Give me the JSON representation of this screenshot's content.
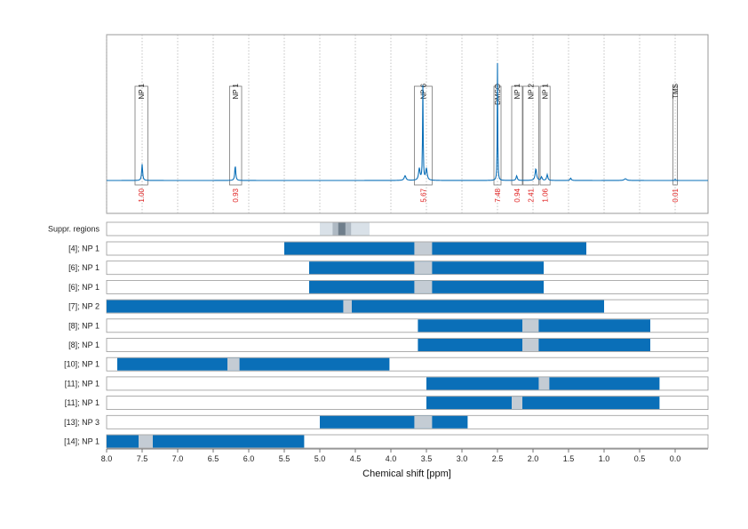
{
  "chart_data": {
    "type": "nmr-spectrum-with-range-bars",
    "xlabel": "Chemical shift [ppm]",
    "xlim": [
      8.0,
      -0.45
    ],
    "x_reversed": true,
    "xticks": [
      "8.0",
      "7.5",
      "7.0",
      "6.5",
      "6.0",
      "5.5",
      "5.0",
      "4.5",
      "4.0",
      "3.5",
      "3.0",
      "2.5",
      "2.0",
      "1.5",
      "1.0",
      "0.5",
      "0.0"
    ],
    "grid": "vertical dotted lines every 0.5 ppm in spectrum panel",
    "colors": {
      "bar": "#0a6fb8",
      "gap": "#c4ccd4",
      "spectrum": "#0a6fb8",
      "integral": "#e02020",
      "suppr_light": "#d9e1e8",
      "suppr_mid": "#aeb9c3",
      "suppr_dark": "#6f7e8b"
    },
    "spectrum": {
      "baseline": 0.0,
      "peaks": [
        {
          "ppm": 7.5,
          "height": 0.14,
          "width": 0.008
        },
        {
          "ppm": 6.19,
          "height": 0.13,
          "width": 0.008
        },
        {
          "ppm": 3.8,
          "height": 0.04,
          "width": 0.015
        },
        {
          "ppm": 3.6,
          "height": 0.1,
          "width": 0.012
        },
        {
          "ppm": 3.55,
          "height": 0.8,
          "width": 0.005
        },
        {
          "ppm": 3.5,
          "height": 0.1,
          "width": 0.012
        },
        {
          "ppm": 2.5,
          "height": 1.0,
          "width": 0.004
        },
        {
          "ppm": 2.23,
          "height": 0.04,
          "width": 0.01
        },
        {
          "ppm": 1.96,
          "height": 0.1,
          "width": 0.012
        },
        {
          "ppm": 1.88,
          "height": 0.03,
          "width": 0.01
        },
        {
          "ppm": 1.8,
          "height": 0.05,
          "width": 0.01
        },
        {
          "ppm": 1.47,
          "height": 0.02,
          "width": 0.01
        },
        {
          "ppm": 0.7,
          "height": 0.015,
          "width": 0.02
        },
        {
          "ppm": 0.0,
          "height": 0.01,
          "width": 0.005
        }
      ],
      "regions": [
        {
          "label": "NP 1",
          "from": 7.6,
          "to": 7.42,
          "integral": "1.00"
        },
        {
          "label": "NP 1",
          "from": 6.27,
          "to": 6.1,
          "integral": "0.93"
        },
        {
          "label": "NP 6",
          "from": 3.67,
          "to": 3.42,
          "integral": "5.67"
        },
        {
          "label": "DMSO",
          "from": 2.55,
          "to": 2.45,
          "integral": "7.48"
        },
        {
          "label": "NP 1",
          "from": 2.3,
          "to": 2.15,
          "integral": "0.94"
        },
        {
          "label": "NP 2",
          "from": 2.14,
          "to": 1.92,
          "integral": "2.41"
        },
        {
          "label": "NP 1",
          "from": 1.9,
          "to": 1.76,
          "integral": "1.06"
        },
        {
          "label": "TMS",
          "from": 0.03,
          "to": -0.03,
          "integral": "0.01"
        }
      ]
    },
    "suppression": {
      "label": "Suppr. regions",
      "bands": [
        {
          "from": 5.0,
          "to": 4.3,
          "level": "light"
        },
        {
          "from": 4.82,
          "to": 4.56,
          "level": "mid"
        },
        {
          "from": 4.74,
          "to": 4.64,
          "level": "dark"
        }
      ]
    },
    "rows": [
      {
        "label": "[4]; NP 1",
        "from": 5.5,
        "to": 1.25,
        "gaps": [
          [
            3.67,
            3.42
          ]
        ]
      },
      {
        "label": "[6]; NP 1",
        "from": 5.15,
        "to": 1.85,
        "gaps": [
          [
            3.67,
            3.42
          ]
        ]
      },
      {
        "label": "[6]; NP 1",
        "from": 5.15,
        "to": 1.85,
        "gaps": [
          [
            3.67,
            3.42
          ]
        ]
      },
      {
        "label": "[7]; NP 2",
        "from": 8.0,
        "to": 1.0,
        "gaps": [
          [
            4.67,
            4.55
          ]
        ]
      },
      {
        "label": "[8]; NP 1",
        "from": 3.62,
        "to": 0.35,
        "gaps": [
          [
            2.15,
            1.92
          ]
        ]
      },
      {
        "label": "[8]; NP 1",
        "from": 3.62,
        "to": 0.35,
        "gaps": [
          [
            2.15,
            1.92
          ]
        ]
      },
      {
        "label": "[10]; NP 1",
        "from": 7.85,
        "to": 4.02,
        "gaps": [
          [
            6.3,
            6.13
          ]
        ]
      },
      {
        "label": "[11]; NP 1",
        "from": 3.5,
        "to": 0.22,
        "gaps": [
          [
            1.92,
            1.77
          ]
        ]
      },
      {
        "label": "[11]; NP 1",
        "from": 3.5,
        "to": 0.22,
        "gaps": [
          [
            2.3,
            2.15
          ]
        ]
      },
      {
        "label": "[13]; NP 3",
        "from": 5.0,
        "to": 2.92,
        "gaps": [
          [
            3.67,
            3.42
          ]
        ]
      },
      {
        "label": "[14]; NP 1",
        "from": 8.0,
        "to": 5.22,
        "gaps": [
          [
            7.55,
            7.35
          ]
        ]
      }
    ]
  }
}
